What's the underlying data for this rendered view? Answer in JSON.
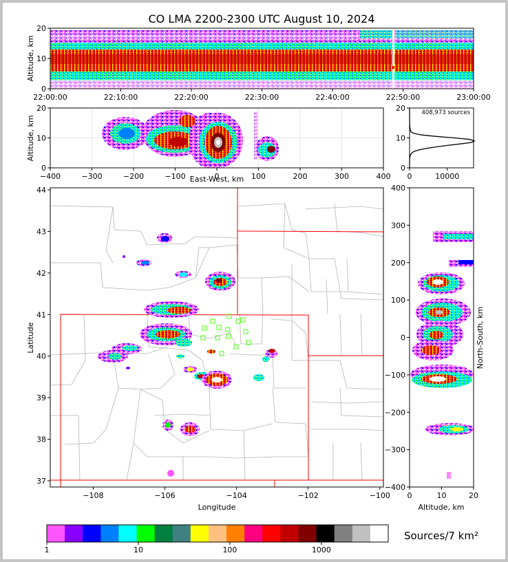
{
  "title": "CO LMA 2200-2300 UTC August 10, 2024",
  "colors": {
    "colorbar": [
      "#ff55ff",
      "#8800ff",
      "#0000ff",
      "#0080ff",
      "#00ffff",
      "#00ff00",
      "#008040",
      "#408080",
      "#ffff00",
      "#ffc080",
      "#ff8000",
      "#ff0080",
      "#ff0000",
      "#c00000",
      "#800000",
      "#000000",
      "#808080",
      "#c0c0c0",
      "#ffffff"
    ],
    "state_border": "#ff0000",
    "county_border": "#b4b4b4",
    "station_marker": "#66ff33"
  },
  "chart_data": [
    {
      "name": "altitude-time",
      "type": "heatmap",
      "ylabel": "Altitude, km",
      "x_ticks": [
        "22:00:00",
        "22:10:00",
        "22:20:00",
        "22:30:00",
        "22:40:00",
        "22:50:00",
        "23:00:00"
      ],
      "y_ticks": [
        "0",
        "10",
        "20"
      ],
      "xlim": [
        "22:00:00",
        "23:00:00"
      ],
      "ylim": [
        0,
        20
      ],
      "grid": false
    },
    {
      "name": "altitude-eastwest",
      "type": "heatmap",
      "xlabel": "East-West, km",
      "ylabel": "Altitude, km",
      "x_ticks": [
        "−400",
        "−300",
        "−200",
        "−100",
        "0",
        "100",
        "200",
        "300",
        "400"
      ],
      "y_ticks": [
        "0",
        "10",
        "20"
      ],
      "xlim": [
        -400,
        400
      ],
      "ylim": [
        0,
        20
      ],
      "grid": true
    },
    {
      "name": "altitude-histogram",
      "type": "line",
      "annotation": "408,973 sources",
      "x_ticks": [
        "0",
        "10000"
      ],
      "y_ticks": [
        "0",
        "10",
        "20"
      ],
      "xlim": [
        0,
        17000
      ],
      "ylim": [
        0,
        20
      ],
      "x": [
        0,
        5,
        10,
        20,
        60,
        150,
        300,
        600,
        1200,
        2500,
        4500,
        7000,
        10000,
        13500,
        16500,
        17200,
        16000,
        12000,
        7000,
        3200,
        1200,
        400,
        150,
        60,
        20,
        5,
        0
      ],
      "y": [
        0,
        2,
        2.5,
        3,
        3.5,
        4,
        4.5,
        5,
        5.5,
        6,
        6.5,
        7,
        7.5,
        8,
        8.5,
        9,
        9.5,
        10,
        10.5,
        11,
        11.5,
        12,
        13,
        14,
        16,
        18,
        20
      ]
    },
    {
      "name": "plan-view",
      "type": "heatmap",
      "xlabel": "Longitude",
      "ylabel": "Latitude",
      "x_ticks": [
        "−108",
        "−106",
        "−104",
        "−102",
        "−100"
      ],
      "y_ticks": [
        "37",
        "38",
        "39",
        "40",
        "41",
        "42",
        "43",
        "44"
      ],
      "xlim": [
        -109.2,
        -99.9
      ],
      "ylim": [
        36.85,
        44.05
      ]
    },
    {
      "name": "altitude-northsouth",
      "type": "heatmap",
      "xlabel": "Altitude, km",
      "ylabel": "North-South, km",
      "x_ticks": [
        "0",
        "10",
        "20"
      ],
      "y_ticks": [
        "−400",
        "−300",
        "−200",
        "−100",
        "0",
        "100",
        "200",
        "300",
        "400"
      ],
      "xlim": [
        0,
        20
      ],
      "ylim": [
        -400,
        400
      ]
    },
    {
      "name": "colorbar",
      "type": "bar",
      "label": "Sources/7 km²",
      "ticks": [
        "1",
        "10",
        "100",
        "1000"
      ]
    }
  ]
}
